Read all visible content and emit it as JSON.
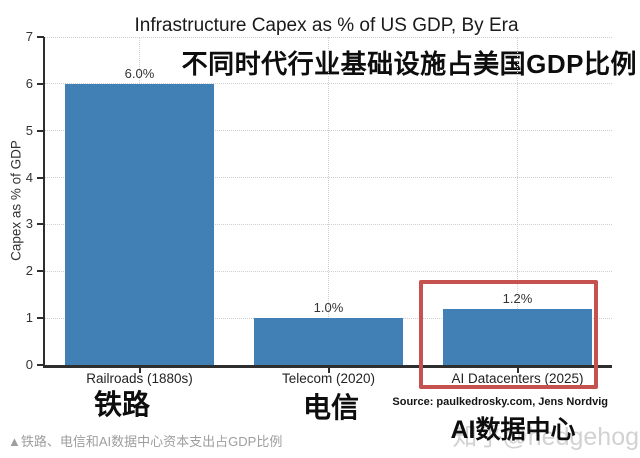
{
  "chart_data": {
    "type": "bar",
    "title": "Infrastructure Capex as % of US GDP, By Era",
    "subtitle_zh": "不同时代行业基础设施占美国GDP比例",
    "categories": [
      "Railroads (1880s)",
      "Telecom (2020)",
      "AI Datacenters (2025)"
    ],
    "values": [
      6.0,
      1.0,
      1.2
    ],
    "bar_labels": [
      "6.0%",
      "1.0%",
      "1.2%"
    ],
    "xlabel": "",
    "ylabel": "Capex as % of GDP",
    "ylim": [
      0,
      7
    ],
    "yticks": [
      0,
      1,
      2,
      3,
      4,
      5,
      6,
      7
    ],
    "grid": true,
    "legend": "none",
    "bar_color": "#4180b5",
    "highlighted_category": "AI Datacenters (2025)"
  },
  "annotations": {
    "x_labels_zh": [
      "铁路",
      "电信",
      "AI数据中心"
    ],
    "source": "Source: paulkedrosky.com, Jens Nordvig"
  },
  "caption": "▲铁路、电信和AI数据中心资本支出占GDP比例",
  "watermark": "知乎@hedgehog",
  "colors": {
    "bar": "#4180b5",
    "highlight_box": "#c5524e",
    "grid": "#cfcfcf",
    "axis": "#2e2e2e",
    "caption": "#9e9e9e",
    "watermark": "#d2d2d2"
  }
}
